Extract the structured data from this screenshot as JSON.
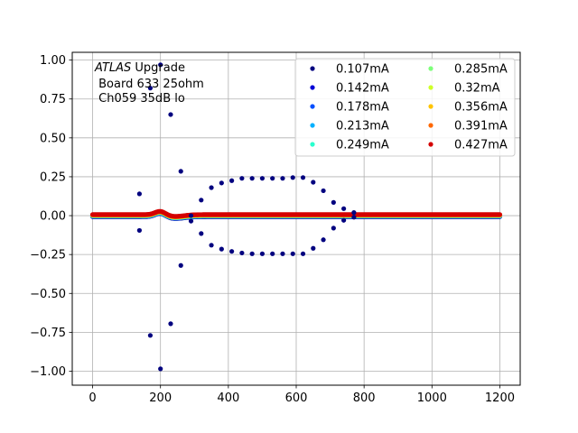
{
  "chart_data": {
    "type": "scatter",
    "title": "",
    "xlabel": "",
    "ylabel": "",
    "xlim": [
      -60,
      1260
    ],
    "ylim": [
      -1.09,
      1.05
    ],
    "grid": true,
    "legend_position": "top-right",
    "legend_columns": 2,
    "x_ticks": [
      0,
      200,
      400,
      600,
      800,
      1000,
      1200
    ],
    "x_tick_labels": [
      "0",
      "200",
      "400",
      "600",
      "800",
      "1000",
      "1200"
    ],
    "y_ticks": [
      1.0,
      0.75,
      0.5,
      0.25,
      0.0,
      -0.25,
      -0.5,
      -0.75,
      -1.0
    ],
    "y_tick_labels": [
      "1.00",
      "0.75",
      "0.50",
      "0.25",
      "0.00",
      "−0.25",
      "−0.50",
      "−0.75",
      "−1.00"
    ],
    "annotation": {
      "italic_part": "ATLAS",
      "line1_rest": " Upgrade",
      "line2": " Board 633 25ohm",
      "line3": " Ch059 35dB lo"
    },
    "series": [
      {
        "name": "0.107mA",
        "color": "#00007f",
        "sparse_points": [
          [
            138,
            0.14
          ],
          [
            138,
            -0.095
          ],
          [
            170,
            0.82
          ],
          [
            170,
            -0.77
          ],
          [
            200,
            0.97
          ],
          [
            200,
            -0.985
          ],
          [
            230,
            0.65
          ],
          [
            230,
            -0.695
          ],
          [
            260,
            0.285
          ],
          [
            260,
            -0.32
          ],
          [
            290,
            0.0
          ],
          [
            290,
            -0.035
          ],
          [
            320,
            0.1
          ],
          [
            320,
            -0.115
          ],
          [
            350,
            0.18
          ],
          [
            350,
            -0.19
          ],
          [
            380,
            0.21
          ],
          [
            380,
            -0.215
          ],
          [
            410,
            0.225
          ],
          [
            410,
            -0.23
          ],
          [
            440,
            0.24
          ],
          [
            440,
            -0.24
          ],
          [
            470,
            0.24
          ],
          [
            470,
            -0.245
          ],
          [
            500,
            0.24
          ],
          [
            500,
            -0.245
          ],
          [
            530,
            0.24
          ],
          [
            530,
            -0.245
          ],
          [
            560,
            0.24
          ],
          [
            560,
            -0.245
          ],
          [
            590,
            0.245
          ],
          [
            590,
            -0.245
          ],
          [
            620,
            0.245
          ],
          [
            620,
            -0.245
          ],
          [
            650,
            0.215
          ],
          [
            650,
            -0.21
          ],
          [
            680,
            0.16
          ],
          [
            680,
            -0.155
          ],
          [
            710,
            0.085
          ],
          [
            710,
            -0.08
          ],
          [
            740,
            0.045
          ],
          [
            740,
            -0.03
          ],
          [
            770,
            0.02
          ],
          [
            770,
            -0.01
          ]
        ]
      },
      {
        "name": "0.142mA",
        "color": "#0000d6"
      },
      {
        "name": "0.178mA",
        "color": "#0050ff"
      },
      {
        "name": "0.213mA",
        "color": "#00b0ff"
      },
      {
        "name": "0.249mA",
        "color": "#29ffce"
      },
      {
        "name": "0.285mA",
        "color": "#7dff7a"
      },
      {
        "name": "0.32mA",
        "color": "#ceff29"
      },
      {
        "name": "0.356mA",
        "color": "#ffc400"
      },
      {
        "name": "0.391mA",
        "color": "#ff6800"
      },
      {
        "name": "0.427mA",
        "color": "#d40000"
      }
    ],
    "dense_band": {
      "x_range": [
        0,
        1200
      ],
      "baseline_y": 0.0,
      "bump_center_x": 200,
      "bump_peak_y": 0.025,
      "dip_center_x": 240,
      "dip_min_y": -0.012
    }
  }
}
